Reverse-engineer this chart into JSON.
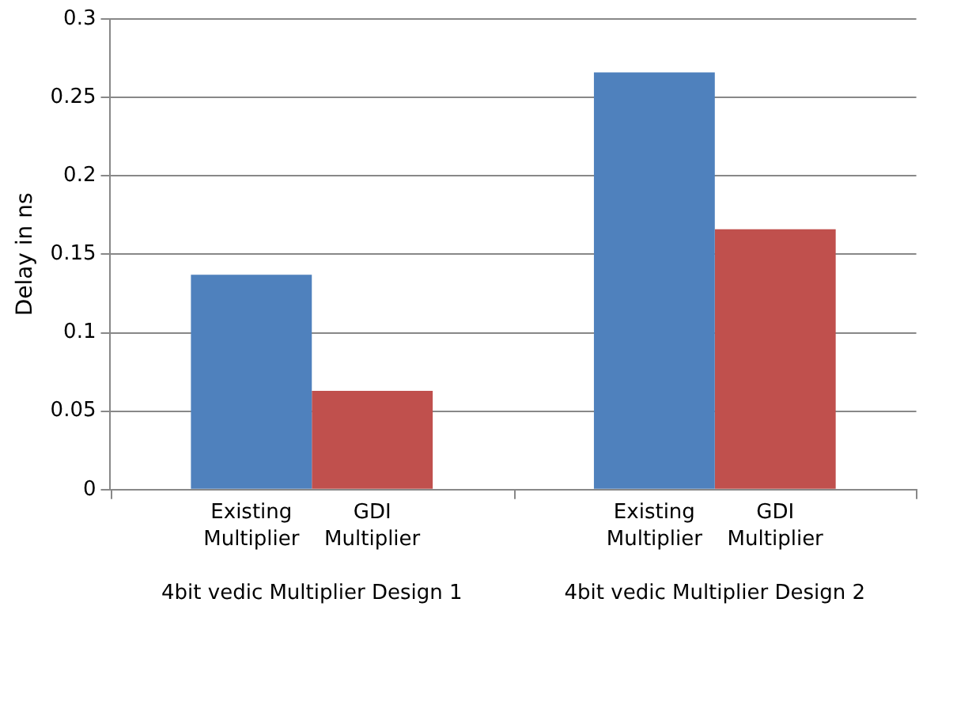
{
  "chart_data": {
    "type": "bar",
    "ylabel": "Delay in ns",
    "categories": [
      "4bit vedic Multiplier Design 1",
      "4bit vedic Multiplier Design 2"
    ],
    "series": [
      {
        "name": "Existing Multiplier",
        "color": "#4f81bd",
        "values": [
          0.137,
          0.266
        ]
      },
      {
        "name": "GDI Multiplier",
        "color": "#c0504d",
        "values": [
          0.063,
          0.166
        ]
      }
    ],
    "ylim": [
      0,
      0.3
    ],
    "yticks": [
      0,
      0.05,
      0.1,
      0.15,
      0.2,
      0.25,
      0.3
    ],
    "grid": "y",
    "legend": false
  }
}
